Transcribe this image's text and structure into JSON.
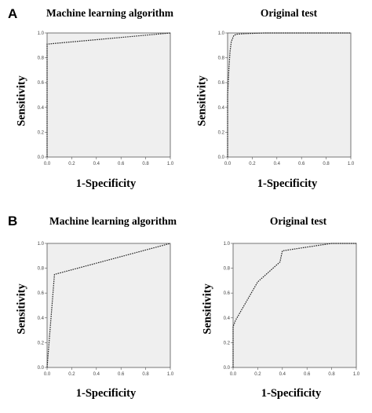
{
  "panels": [
    {
      "letter": "A"
    },
    {
      "letter": "B"
    }
  ],
  "chart_data": [
    {
      "type": "line",
      "panel": "A",
      "title": "Machine learning algorithm",
      "xlabel": "1-Specificity",
      "ylabel": "Sensitivity",
      "xlim": [
        0,
        1
      ],
      "ylim": [
        0,
        1
      ],
      "xticks": [
        "0.0",
        "0.2",
        "0.4",
        "0.6",
        "0.8",
        "1.0"
      ],
      "yticks": [
        "0.0",
        "0.2",
        "0.4",
        "0.6",
        "0.8",
        "1.0"
      ],
      "grid": false,
      "series": [
        {
          "x": [
            0,
            0,
            1
          ],
          "y": [
            0,
            0.91,
            1
          ]
        }
      ]
    },
    {
      "type": "line",
      "panel": "A",
      "title": "Original test",
      "xlabel": "1-Specificity",
      "ylabel": "Sensitivity",
      "xlim": [
        0,
        1
      ],
      "ylim": [
        0,
        1
      ],
      "xticks": [
        "0.0",
        "0.2",
        "0.4",
        "0.6",
        "0.8",
        "1.0"
      ],
      "yticks": [
        "0.0",
        "0.2",
        "0.4",
        "0.6",
        "0.8",
        "1.0"
      ],
      "grid": false,
      "series": [
        {
          "x": [
            0,
            0,
            0.01,
            0.02,
            0.03,
            0.05,
            0.07,
            0.15,
            0.3,
            0.6,
            1
          ],
          "y": [
            0,
            0.5,
            0.7,
            0.85,
            0.93,
            0.98,
            0.99,
            0.995,
            1,
            1,
            1
          ]
        }
      ]
    },
    {
      "type": "line",
      "panel": "B",
      "title": "Machine learning algorithm",
      "xlabel": "1-Specificity",
      "ylabel": "Sensitivity",
      "xlim": [
        0,
        1
      ],
      "ylim": [
        0,
        1
      ],
      "xticks": [
        "0.0",
        "0.2",
        "0.4",
        "0.6",
        "0.8",
        "1.0"
      ],
      "yticks": [
        "0.0",
        "0.2",
        "0.4",
        "0.6",
        "0.8",
        "1.0"
      ],
      "grid": false,
      "series": [
        {
          "x": [
            0,
            0.06,
            1
          ],
          "y": [
            0,
            0.75,
            1
          ]
        }
      ]
    },
    {
      "type": "line",
      "panel": "B",
      "title": "Original test",
      "xlabel": "1-Specificity",
      "ylabel": "Sensitivity",
      "xlim": [
        0,
        1
      ],
      "ylim": [
        0,
        1
      ],
      "xticks": [
        "0.0",
        "0.2",
        "0.4",
        "0.6",
        "0.8",
        "1.0"
      ],
      "yticks": [
        "0.0",
        "0.2",
        "0.4",
        "0.6",
        "0.8",
        "1.0"
      ],
      "grid": false,
      "series": [
        {
          "x": [
            0,
            0,
            0.02,
            0.2,
            0.38,
            0.4,
            0.6,
            0.8,
            1
          ],
          "y": [
            0,
            0.33,
            0.38,
            0.69,
            0.85,
            0.94,
            0.97,
            1,
            1
          ]
        }
      ]
    }
  ]
}
